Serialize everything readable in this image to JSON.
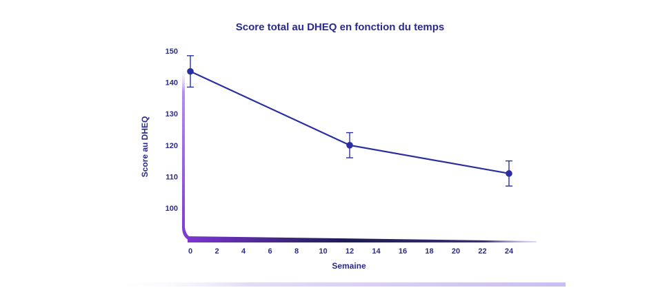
{
  "colors": {
    "series": "#2b2ea0",
    "text": "#2a2a8c",
    "axis_gradient_start": "#8a3fd9",
    "axis_gradient_end": "#1c1c55"
  },
  "chart_data": {
    "type": "line",
    "title": "Score total au DHEQ en fonction du temps",
    "xlabel": "Semaine",
    "ylabel": "Score au DHEQ",
    "x_ticks": [
      0,
      2,
      4,
      6,
      8,
      10,
      12,
      14,
      16,
      18,
      20,
      22,
      24
    ],
    "y_ticks": [
      100,
      110,
      120,
      130,
      140,
      150
    ],
    "xlim": [
      0,
      26
    ],
    "ylim": [
      90,
      150
    ],
    "grid": false,
    "series": [
      {
        "x": [
          0,
          12,
          24
        ],
        "y": [
          143.5,
          120,
          111
        ],
        "error": [
          5,
          4,
          4
        ]
      }
    ]
  }
}
